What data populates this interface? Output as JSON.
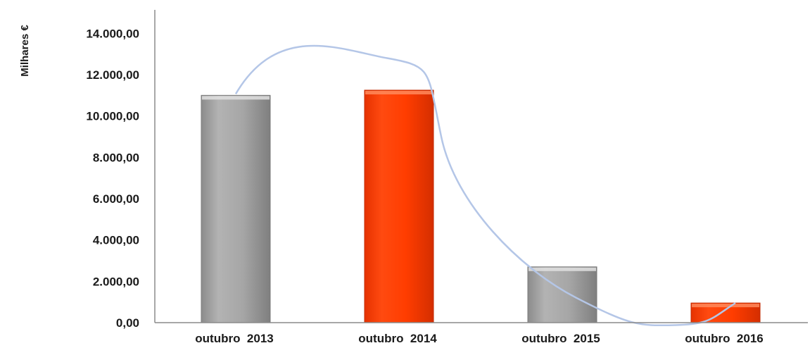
{
  "chart_data": {
    "type": "bar",
    "ylabel": "Milhares €",
    "categories": [
      "outubro  2013",
      "outubro  2014",
      "outubro  2015",
      "outubro  2016"
    ],
    "series": [
      {
        "values": [
          11000,
          11250,
          2700,
          950
        ]
      }
    ],
    "bar_colors": [
      "#a6a6a6",
      "#ff3d00",
      "#a6a6a6",
      "#ff3d00"
    ],
    "yticks": [
      "0,00",
      "2.000,00",
      "4.000,00",
      "6.000,00",
      "8.000,00",
      "10.000,00",
      "12.000,00",
      "14.000,00"
    ],
    "ylim": [
      0,
      15000
    ],
    "grid": false,
    "legend": "none",
    "trend_curve": {
      "type": "smooth line",
      "color": "#b4c6e7"
    }
  }
}
